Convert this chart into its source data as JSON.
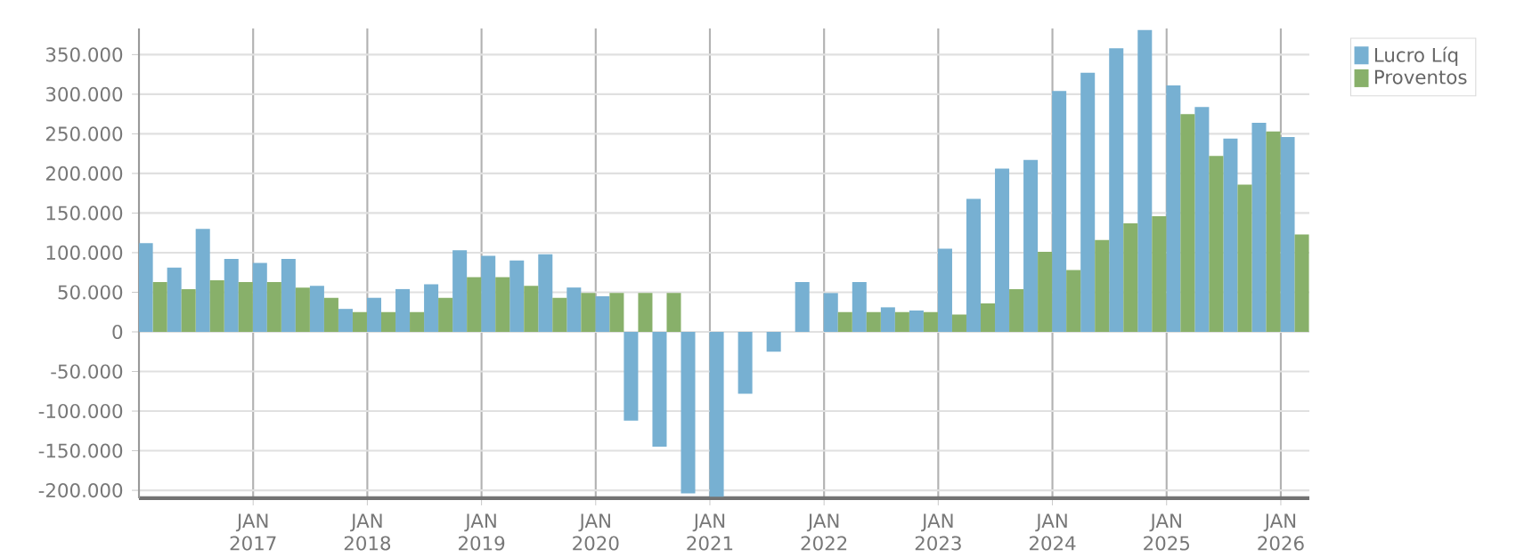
{
  "chart_data": {
    "type": "bar",
    "x": [
      "2016-02-15",
      "2016-05-15",
      "2016-08-15",
      "2016-11-15",
      "2017-02-15",
      "2017-05-15",
      "2017-08-15",
      "2017-11-15",
      "2018-02-15",
      "2018-05-15",
      "2018-08-15",
      "2018-11-15",
      "2019-02-15",
      "2019-05-15",
      "2019-08-15",
      "2019-11-15",
      "2020-02-15",
      "2020-05-15",
      "2020-08-15",
      "2020-11-15",
      "2021-02-15",
      "2021-05-15",
      "2021-08-15",
      "2021-11-15",
      "2022-02-15",
      "2022-05-15",
      "2022-08-15",
      "2022-11-15",
      "2023-02-15",
      "2023-05-15",
      "2023-08-15",
      "2023-11-15",
      "2024-02-15",
      "2024-05-15",
      "2024-08-15",
      "2024-11-15",
      "2025-02-15",
      "2025-05-15",
      "2025-08-15",
      "2025-11-15",
      "2026-02-15"
    ],
    "series": [
      {
        "name": "Lucro Líq",
        "color": "#77b0d2",
        "values": [
          112000,
          81000,
          130000,
          92000,
          87000,
          92000,
          58000,
          29000,
          43000,
          54000,
          60000,
          103000,
          96000,
          90000,
          98000,
          56000,
          45000,
          -112000,
          -145000,
          -204000,
          -208000,
          -78000,
          -25000,
          63000,
          49000,
          63000,
          31000,
          27000,
          105000,
          168000,
          206000,
          217000,
          304000,
          327000,
          358000,
          381000,
          311000,
          284000,
          244000,
          264000,
          246000
        ]
      },
      {
        "name": "Proventos",
        "color": "#88b06a",
        "values": [
          63000,
          54000,
          65000,
          63000,
          63000,
          56000,
          43000,
          25000,
          25000,
          25000,
          43000,
          69000,
          69000,
          58000,
          43000,
          49000,
          49000,
          49000,
          49000,
          0,
          0,
          0,
          0,
          0,
          25000,
          25000,
          25000,
          25000,
          22000,
          36000,
          54000,
          101000,
          78000,
          116000,
          137000,
          146000,
          275000,
          222000,
          186000,
          253000,
          123000
        ]
      }
    ],
    "xlim": [
      "2016-01-01",
      "2026-04-01"
    ],
    "xticks": [
      {
        "value": "2017-01-01",
        "label": "JAN 2017"
      },
      {
        "value": "2018-01-01",
        "label": "JAN 2018"
      },
      {
        "value": "2019-01-01",
        "label": "JAN 2019"
      },
      {
        "value": "2020-01-01",
        "label": "JAN 2020"
      },
      {
        "value": "2021-01-01",
        "label": "JAN 2021"
      },
      {
        "value": "2022-01-01",
        "label": "JAN 2022"
      },
      {
        "value": "2023-01-01",
        "label": "JAN 2023"
      },
      {
        "value": "2024-01-01",
        "label": "JAN 2024"
      },
      {
        "value": "2025-01-01",
        "label": "JAN 2025"
      },
      {
        "value": "2026-01-01",
        "label": "JAN 2026"
      }
    ],
    "ylim": [
      -210000,
      383000
    ],
    "yticks": [
      {
        "value": -200000,
        "label": "-200.000"
      },
      {
        "value": -150000,
        "label": "-150.000"
      },
      {
        "value": -100000,
        "label": "-100.000"
      },
      {
        "value": -50000,
        "label": "-50.000"
      },
      {
        "value": 0,
        "label": "0"
      },
      {
        "value": 50000,
        "label": "50.000"
      },
      {
        "value": 100000,
        "label": "100.000"
      },
      {
        "value": 150000,
        "label": "150.000"
      },
      {
        "value": 200000,
        "label": "200.000"
      },
      {
        "value": 250000,
        "label": "250.000"
      },
      {
        "value": 300000,
        "label": "300.000"
      },
      {
        "value": 350000,
        "label": "350.000"
      }
    ],
    "grid": true,
    "legend": "top right"
  }
}
